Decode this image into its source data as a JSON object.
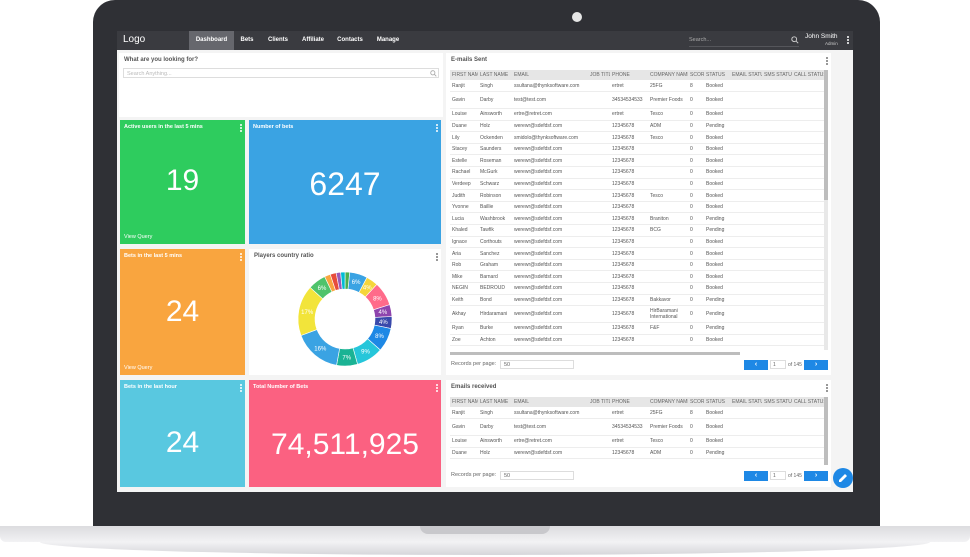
{
  "nav": {
    "logo": "Logo",
    "tabs": [
      "Dashboard",
      "Bets",
      "Clients",
      "Affiliate",
      "Contacts",
      "Manage"
    ],
    "search_placeholder": "Search...",
    "user_name": "John Smith",
    "user_role": "Admin"
  },
  "search_panel": {
    "title": "What are you looking for?",
    "placeholder": "Search Anything..."
  },
  "tiles": {
    "active_users": {
      "title": "Active users in the last 5 mins",
      "value": "19",
      "link": "View Query",
      "color": "#2ecc5e"
    },
    "bets_count": {
      "title": "Number of bets",
      "value": "6247",
      "color": "#3aa3e3"
    },
    "bets_5min": {
      "title": "Bets in the last 5 mins",
      "value": "24",
      "link": "View Query",
      "color": "#f9a53f"
    },
    "bets_hour": {
      "title": "Bets in the last hour",
      "value": "24",
      "color": "#59c8e0"
    },
    "total_bets": {
      "title": "Total Number of Bets",
      "value": "74,511,925",
      "color": "#fb6181"
    }
  },
  "players_chart": {
    "title": "Players country ratio",
    "chart_data": {
      "type": "pie",
      "labels": [
        "6%",
        "4%",
        "8%",
        "4%",
        "4%",
        "8%",
        "9%",
        "7%",
        "16%",
        "17%",
        "6%"
      ],
      "values": [
        6,
        4,
        8,
        4,
        4,
        8,
        9,
        7,
        16,
        17,
        6
      ],
      "extra": [
        2,
        2,
        1.5,
        1.5,
        1.5
      ],
      "colors": [
        "#3aa3e3",
        "#f5d53a",
        "#ff6b8a",
        "#8e44ad",
        "#3949ab",
        "#1e88e5",
        "#26c6da",
        "#1ab394",
        "#3aa3e3",
        "#f2e43a",
        "#4fc36b",
        "#f9a53f",
        "#e74c3c",
        "#9b59b6",
        "#00bcd4",
        "#4caf50"
      ]
    }
  },
  "emails_sent": {
    "title": "E-mails Sent",
    "columns": [
      "FIRST NAME",
      "LAST NAME",
      "EMAIL",
      "JOB TITLE",
      "PHONE",
      "COMPANY NAME",
      "SCORE",
      "STATUS",
      "EMAIL STATUS",
      "SMS STATUS",
      "CALL STATUS"
    ],
    "rows": [
      [
        "Ranjit",
        "Singh",
        "ssultana@thynksoftware.com",
        "",
        "ertret",
        "25FG",
        "8",
        "Booked",
        "",
        "",
        ""
      ],
      [
        "Gavin",
        "Darby",
        "test@test.com",
        "",
        "34534534533",
        "Premier Foods",
        "0",
        "Booked",
        "",
        "",
        ""
      ],
      [
        "Louise",
        "Ainsworth",
        "ertre@retret.com",
        "",
        "ertret",
        "Tesco",
        "0",
        "Booked",
        "",
        "",
        ""
      ],
      [
        "Duane",
        "Holz",
        "werewr@sdefdsf.com",
        "",
        "12345678",
        "ADM",
        "0",
        "Pending",
        "",
        "",
        ""
      ],
      [
        "Lily",
        "Ockenden",
        "smidolo@thynksoftware.com",
        "",
        "12345678",
        "Tesco",
        "0",
        "Booked",
        "",
        "",
        ""
      ],
      [
        "Stacey",
        "Saunders",
        "werewr@sdefdsf.com",
        "",
        "12345678",
        "",
        "0",
        "Booked",
        "",
        "",
        ""
      ],
      [
        "Estelle",
        "Roseman",
        "werewr@sdefdsf.com",
        "",
        "12345678",
        "",
        "0",
        "Booked",
        "",
        "",
        ""
      ],
      [
        "Rachael",
        "McGurk",
        "werewr@sdefdsf.com",
        "",
        "12345678",
        "",
        "0",
        "Booked",
        "",
        "",
        ""
      ],
      [
        "Verdeep",
        "Schwarz",
        "werewr@sdefdsf.com",
        "",
        "12345678",
        "",
        "0",
        "Booked",
        "",
        "",
        ""
      ],
      [
        "Judith",
        "Robinson",
        "werewr@sdefdsf.com",
        "",
        "12345678",
        "Tesco",
        "0",
        "Booked",
        "",
        "",
        ""
      ],
      [
        "Yvonne",
        "Baillie",
        "werewr@sdefdsf.com",
        "",
        "12345678",
        "",
        "0",
        "Booked",
        "",
        "",
        ""
      ],
      [
        "Lucia",
        "Washbrook",
        "werewr@sdefdsf.com",
        "",
        "12345678",
        "Braniton",
        "0",
        "Pending",
        "",
        "",
        ""
      ],
      [
        "Khaled",
        "Tawfik",
        "werewr@sdefdsf.com",
        "",
        "12345678",
        "BCG",
        "0",
        "Pending",
        "",
        "",
        ""
      ],
      [
        "Ignace",
        "Corthouts",
        "werewr@sdefdsf.com",
        "",
        "12345678",
        "",
        "0",
        "Booked",
        "",
        "",
        ""
      ],
      [
        "Aria",
        "Sanchez",
        "werewr@sdefdsf.com",
        "",
        "12345678",
        "",
        "0",
        "Booked",
        "",
        "",
        ""
      ],
      [
        "Rob",
        "Graham",
        "werewr@sdefdsf.com",
        "",
        "12345678",
        "",
        "0",
        "Booked",
        "",
        "",
        ""
      ],
      [
        "Mike",
        "Barnard",
        "werewr@sdefdsf.com",
        "",
        "12345678",
        "",
        "0",
        "Booked",
        "",
        "",
        ""
      ],
      [
        "NEGIN",
        "BEDROUD",
        "werewr@sdefdsf.com",
        "",
        "12345678",
        "",
        "0",
        "Booked",
        "",
        "",
        ""
      ],
      [
        "Keith",
        "Bond",
        "werewr@sdefdsf.com",
        "",
        "12345678",
        "Bakkavor",
        "0",
        "Pending",
        "",
        "",
        ""
      ],
      [
        "Akhay",
        "Hirdaramani",
        "werewr@sdefdsf.com",
        "",
        "12345678",
        "HirBaramani International",
        "0",
        "Pending",
        "",
        "",
        ""
      ],
      [
        "Ryan",
        "Burke",
        "werewr@sdefdsf.com",
        "",
        "12345678",
        "F&F",
        "0",
        "Pending",
        "",
        "",
        ""
      ],
      [
        "Zoe",
        "Achton",
        "werewr@sdefdsf.com",
        "",
        "12345678",
        "",
        "0",
        "Booked",
        "",
        "",
        ""
      ]
    ],
    "records_label": "Records per page:",
    "records_value": "50",
    "page_value": "1",
    "page_of": "of 145",
    "prev": "‹",
    "next": "›"
  },
  "emails_received": {
    "title": "Emails received",
    "columns": [
      "FIRST NAME",
      "LAST NAME",
      "EMAIL",
      "JOB TITLE",
      "PHONE",
      "COMPANY NAME",
      "SCORE",
      "STATUS",
      "EMAIL STATUS",
      "SMS STATUS",
      "CALL STATUS"
    ],
    "rows": [
      [
        "Ranjit",
        "Singh",
        "ssultana@thynksoftware.com",
        "",
        "ertret",
        "25FG",
        "8",
        "Booked",
        "",
        "",
        ""
      ],
      [
        "Gavin",
        "Darby",
        "test@test.com",
        "",
        "34534534533",
        "Premier Foods",
        "0",
        "Booked",
        "",
        "",
        ""
      ],
      [
        "Louise",
        "Ainsworth",
        "ertre@retret.com",
        "",
        "ertret",
        "Tesco",
        "0",
        "Booked",
        "",
        "",
        ""
      ],
      [
        "Duane",
        "Holz",
        "werewr@sdefdsf.com",
        "",
        "12345678",
        "ADM",
        "0",
        "Pending",
        "",
        "",
        ""
      ]
    ],
    "records_label": "Records per page:",
    "records_value": "50",
    "page_value": "1",
    "page_of": "of 145",
    "prev": "‹",
    "next": "›"
  }
}
